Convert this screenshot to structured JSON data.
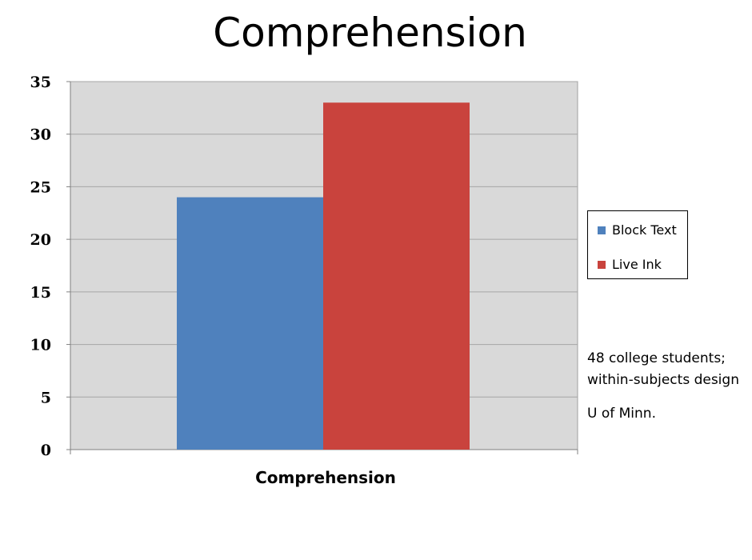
{
  "page": {
    "title": "Comprehension"
  },
  "notes": {
    "sample_line1": "48 college students;",
    "sample_line2": "within-subjects design",
    "institution": "U of Minn."
  },
  "chart_data": {
    "type": "bar",
    "title": "",
    "xlabel": "Comprehension",
    "ylabel": "",
    "categories": [
      "Comprehension"
    ],
    "series": [
      {
        "name": "Block Text",
        "values": [
          24
        ],
        "color": "#4f81bd"
      },
      {
        "name": "Live Ink",
        "values": [
          33
        ],
        "color": "#c9433d"
      }
    ],
    "ylim": [
      0,
      35
    ],
    "yticks": [
      0,
      5,
      10,
      15,
      20,
      25,
      30,
      35
    ],
    "grid": true,
    "plot_background": "#d9d9d9",
    "legend_position": "right"
  }
}
